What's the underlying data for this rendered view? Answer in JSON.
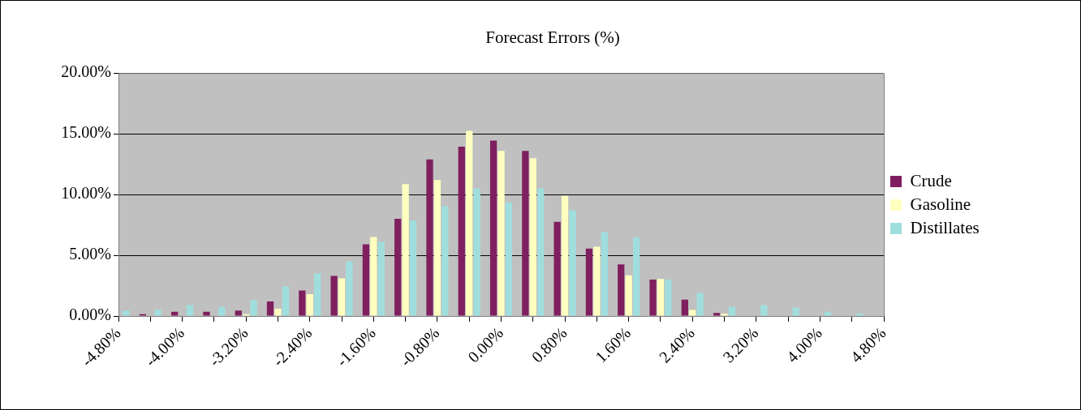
{
  "chart_data": {
    "type": "bar",
    "title": "Forecast Errors (%)",
    "categories": [
      "-4.80%",
      null,
      "-4.00%",
      null,
      "-3.20%",
      null,
      "-2.40%",
      null,
      "-1.60%",
      null,
      "-0.80%",
      null,
      "0.00%",
      null,
      "0.80%",
      null,
      "1.60%",
      null,
      "2.40%",
      null,
      "3.20%",
      null,
      "4.00%",
      null,
      "4.80%"
    ],
    "series": [
      {
        "name": "Crude",
        "color": "#7f1f5f",
        "values": [
          null,
          0.15,
          0.35,
          0.35,
          0.45,
          1.2,
          2.1,
          3.3,
          5.9,
          8.0,
          12.9,
          13.95,
          14.45,
          13.6,
          7.75,
          5.55,
          4.25,
          3.0,
          1.35,
          0.25,
          null,
          null,
          null,
          null,
          null
        ]
      },
      {
        "name": "Gasoline",
        "color": "#ffffc0",
        "values": [
          null,
          null,
          null,
          null,
          0.15,
          0.6,
          1.8,
          3.1,
          6.5,
          10.85,
          11.2,
          15.25,
          13.6,
          13.0,
          9.9,
          5.7,
          3.35,
          3.05,
          0.5,
          0.2,
          null,
          null,
          null,
          null,
          null
        ]
      },
      {
        "name": "Distillates",
        "color": "#a0dede",
        "values": [
          0.45,
          0.5,
          0.9,
          0.75,
          1.3,
          2.45,
          3.5,
          4.5,
          6.1,
          7.85,
          9.05,
          10.5,
          9.35,
          10.5,
          8.7,
          6.9,
          6.45,
          3.0,
          1.9,
          0.75,
          0.9,
          0.7,
          0.35,
          0.2,
          null
        ]
      }
    ],
    "ylim": [
      0,
      20
    ],
    "yticks": [
      {
        "value": 0,
        "label": "0.00%"
      },
      {
        "value": 5,
        "label": "5.00%"
      },
      {
        "value": 10,
        "label": "10.00%"
      },
      {
        "value": 15,
        "label": "15.00%"
      },
      {
        "value": 20,
        "label": "20.00%"
      }
    ],
    "grid": "y",
    "legend": "right"
  }
}
